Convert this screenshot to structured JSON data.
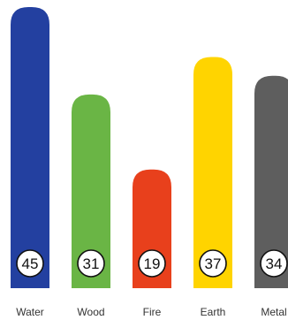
{
  "chart_data": {
    "type": "bar",
    "title": "",
    "xlabel": "",
    "ylabel": "",
    "categories": [
      "Water",
      "Wood",
      "Fire",
      "Earth",
      "Metal"
    ],
    "values": [
      45,
      31,
      19,
      37,
      34
    ],
    "ylim": [
      0,
      45
    ],
    "grid": false,
    "legend": "none",
    "colors": [
      "#2340a0",
      "#6ab545",
      "#e8401c",
      "#ffd400",
      "#5e5e5e"
    ]
  }
}
